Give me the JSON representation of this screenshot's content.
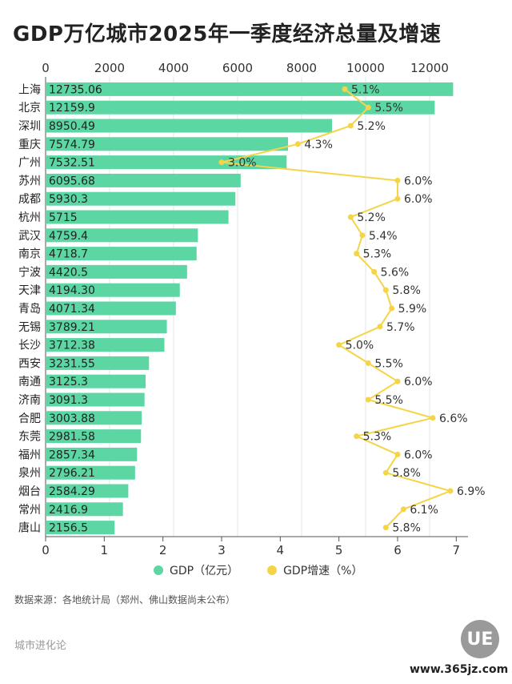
{
  "title": "GDP万亿城市2025年一季度经济总量及增速",
  "chart_data": {
    "type": "bar",
    "orientation": "horizontal",
    "categories": [
      "上海",
      "北京",
      "深圳",
      "重庆",
      "广州",
      "苏州",
      "成都",
      "杭州",
      "武汉",
      "南京",
      "宁波",
      "天津",
      "青岛",
      "无锡",
      "长沙",
      "西安",
      "南通",
      "济南",
      "合肥",
      "东莞",
      "福州",
      "泉州",
      "烟台",
      "常州",
      "唐山"
    ],
    "value_labels": [
      "12735.06",
      "12159.9",
      "8950.49",
      "7574.79",
      "7532.51",
      "6095.68",
      "5930.3",
      "5715",
      "4759.4",
      "4718.7",
      "4420.5",
      "4194.30",
      "4071.34",
      "3789.21",
      "3712.38",
      "3231.55",
      "3125.3",
      "3091.3",
      "3003.88",
      "2981.58",
      "2857.34",
      "2796.21",
      "2584.29",
      "2416.9",
      "2156.5"
    ],
    "series": [
      {
        "name": "GDP（亿元）",
        "type": "bar",
        "axis": "top",
        "values": [
          12735.06,
          12159.9,
          8950.49,
          7574.79,
          7532.51,
          6095.68,
          5930.3,
          5715,
          4759.4,
          4718.7,
          4420.5,
          4194.3,
          4071.34,
          3789.21,
          3712.38,
          3231.55,
          3125.3,
          3091.3,
          3003.88,
          2981.58,
          2857.34,
          2796.21,
          2584.29,
          2416.9,
          2156.5
        ]
      },
      {
        "name": "GDP增速（%）",
        "type": "line",
        "axis": "bottom",
        "values": [
          5.1,
          5.5,
          5.2,
          4.3,
          3.0,
          6.0,
          6.0,
          5.2,
          5.4,
          5.3,
          5.6,
          5.8,
          5.9,
          5.7,
          5.0,
          5.5,
          6.0,
          5.5,
          6.6,
          5.3,
          6.0,
          5.8,
          6.9,
          6.1,
          5.8
        ],
        "labels": [
          "5.1%",
          "5.5%",
          "5.2%",
          "4.3%",
          "3.0%",
          "6.0%",
          "6.0%",
          "5.2%",
          "5.4%",
          "5.3%",
          "5.6%",
          "5.8%",
          "5.9%",
          "5.7%",
          "5.0%",
          "5.5%",
          "6.0%",
          "5.5%",
          "6.6%",
          "5.3%",
          "6.0%",
          "5.8%",
          "6.9%",
          "6.1%",
          "5.8%"
        ]
      }
    ],
    "top_axis": {
      "range": [
        0,
        13200
      ],
      "ticks": [
        "0",
        "2000",
        "4000",
        "6000",
        "8000",
        "10000",
        "12000"
      ],
      "tick_values": [
        0,
        2000,
        4000,
        6000,
        8000,
        10000,
        12000
      ]
    },
    "bottom_axis": {
      "range": [
        0,
        7.2
      ],
      "ticks": [
        "0",
        "1",
        "2",
        "3",
        "4",
        "5",
        "6",
        "7"
      ],
      "tick_values": [
        0,
        1,
        2,
        3,
        4,
        5,
        6,
        7
      ]
    },
    "grid": true,
    "legend_placement": "bottom"
  },
  "colors": {
    "bar": "#5cd6a3",
    "line": "#f5d547",
    "grid": "#e6e6e6"
  },
  "legend": {
    "gdp": "GDP（亿元）",
    "growth": "GDP增速（%）"
  },
  "source": "数据来源：各地统计局（郑州、佛山数据尚未公布）",
  "brand": "城市进化论",
  "logo_text": "UE",
  "site": "www.365jz.com"
}
